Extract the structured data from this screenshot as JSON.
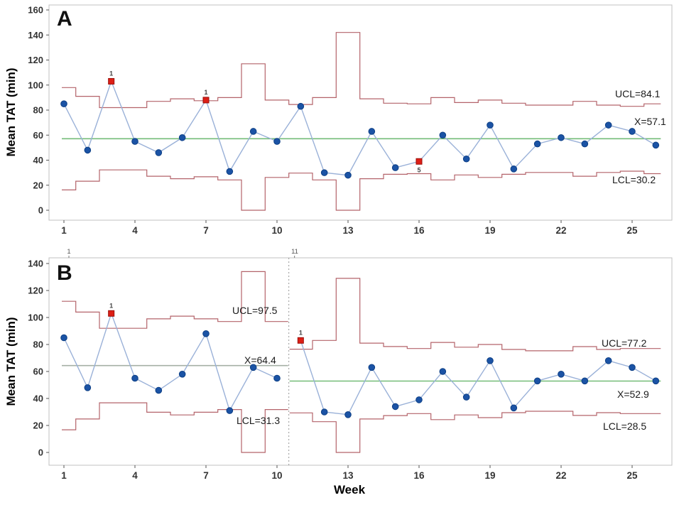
{
  "figure": {
    "xlabel": "Week",
    "ylabel": "Mean TAT (min)",
    "background": "#ffffff"
  },
  "colors": {
    "point_blue": "#1b53a5",
    "point_blue_edge": "#0d3f85",
    "series_line_blue": "#9ab1d8",
    "limit_line_red": "#b4636a",
    "center_green": "#74bd78",
    "center_gray": "#a6b0a6",
    "flag_red_fill": "#dd1f16",
    "flag_red_edge": "#9c0f0a",
    "tick_text": "#333333",
    "border_gray": "#c0c0c0",
    "divider_gray": "#999999"
  },
  "chart_data": [
    {
      "type": "line",
      "panel_letter": "A",
      "ylabel": "Mean TAT (min)",
      "ylim": [
        0,
        160
      ],
      "yticks": [
        0,
        20,
        40,
        60,
        80,
        100,
        120,
        140,
        160
      ],
      "xticks": [
        1,
        4,
        7,
        10,
        13,
        16,
        19,
        22,
        25
      ],
      "x_weeks": [
        1,
        2,
        3,
        4,
        5,
        6,
        7,
        8,
        9,
        10,
        11,
        12,
        13,
        14,
        15,
        16,
        17,
        18,
        19,
        20,
        21,
        22,
        23,
        24,
        25,
        26
      ],
      "values": [
        85,
        48,
        103,
        55,
        46,
        58,
        88,
        31,
        63,
        55,
        83,
        30,
        28,
        63,
        34,
        39,
        60,
        41,
        68,
        33,
        53,
        58,
        53,
        68,
        63,
        52
      ],
      "stages": [
        {
          "weeks": [
            1,
            26
          ],
          "center": 57.1,
          "center_label": "X=57.1",
          "ucl_avg": 84.1,
          "ucl_label": "UCL=84.1",
          "lcl_avg": 30.2,
          "lcl_label": "LCL=30.2",
          "center_color": "green",
          "ucl_per_week": [
            98,
            91,
            82,
            82,
            87,
            89,
            87.5,
            90,
            117,
            88,
            84.5,
            90,
            142,
            89,
            85.5,
            85,
            90,
            86,
            88,
            85.5,
            84,
            84,
            87,
            84,
            83,
            85
          ],
          "lcl_per_week": [
            16.2,
            23.2,
            32.2,
            32.2,
            27.2,
            25.2,
            26.7,
            24.2,
            0,
            26.2,
            29.7,
            24.2,
            0,
            25.2,
            28.7,
            29.2,
            24.2,
            28.2,
            26.2,
            28.7,
            30.2,
            30.2,
            27.2,
            30.2,
            31.2,
            29.2
          ]
        }
      ],
      "flagged": [
        {
          "week": 3,
          "test": "1",
          "pos": "above"
        },
        {
          "week": 7,
          "test": "1",
          "pos": "above"
        },
        {
          "week": 16,
          "test": "5",
          "pos": "below"
        }
      ]
    },
    {
      "type": "line",
      "panel_letter": "B",
      "ylabel": "Mean TAT (min)",
      "xlabel": "Week",
      "ylim": [
        0,
        140
      ],
      "yticks": [
        0,
        20,
        40,
        60,
        80,
        100,
        120,
        140
      ],
      "xticks": [
        1,
        4,
        7,
        10,
        13,
        16,
        19,
        22,
        25
      ],
      "x_weeks": [
        1,
        2,
        3,
        4,
        5,
        6,
        7,
        8,
        9,
        10,
        11,
        12,
        13,
        14,
        15,
        16,
        17,
        18,
        19,
        20,
        21,
        22,
        23,
        24,
        25,
        26
      ],
      "values": [
        85,
        48,
        103,
        55,
        46,
        58,
        88,
        31,
        63,
        55,
        83,
        30,
        28,
        63,
        34,
        39,
        60,
        41,
        68,
        33,
        53,
        58,
        53,
        68,
        63,
        53
      ],
      "divider_week": 10.5,
      "stage_labels": [
        {
          "text": "1",
          "week": 1
        },
        {
          "text": "11",
          "week": 11
        }
      ],
      "stages": [
        {
          "weeks": [
            1,
            10
          ],
          "center": 64.4,
          "center_label": "X=64.4",
          "ucl_avg": 97.5,
          "ucl_label": "UCL=97.5",
          "lcl_avg": 31.3,
          "lcl_label": "LCL=31.3",
          "center_color": "gray",
          "ucl_per_week": [
            112,
            104,
            92,
            92,
            99,
            101,
            99,
            97,
            134,
            97
          ],
          "lcl_per_week": [
            16.8,
            24.8,
            36.8,
            36.8,
            29.8,
            27.8,
            29.8,
            31.8,
            0,
            31.8
          ]
        },
        {
          "weeks": [
            11,
            26
          ],
          "center": 52.9,
          "center_label": "X=52.9",
          "ucl_avg": 77.2,
          "ucl_label": "UCL=77.2",
          "lcl_avg": 28.5,
          "lcl_label": "LCL=28.5",
          "center_color": "green",
          "ucl_per_week": [
            76.5,
            83,
            129,
            81,
            78.5,
            77,
            81.5,
            78,
            80,
            76.3,
            75.3,
            75.3,
            78.4,
            76.3,
            77,
            77
          ],
          "lcl_per_week": [
            29.3,
            22.8,
            0,
            24.8,
            27.3,
            28.8,
            24.3,
            27.8,
            25.8,
            29.5,
            30.5,
            30.5,
            27.4,
            29.5,
            28.8,
            28.8
          ]
        }
      ],
      "flagged": [
        {
          "week": 3,
          "test": "1",
          "pos": "above"
        },
        {
          "week": 11,
          "test": "1",
          "pos": "above"
        }
      ]
    }
  ]
}
